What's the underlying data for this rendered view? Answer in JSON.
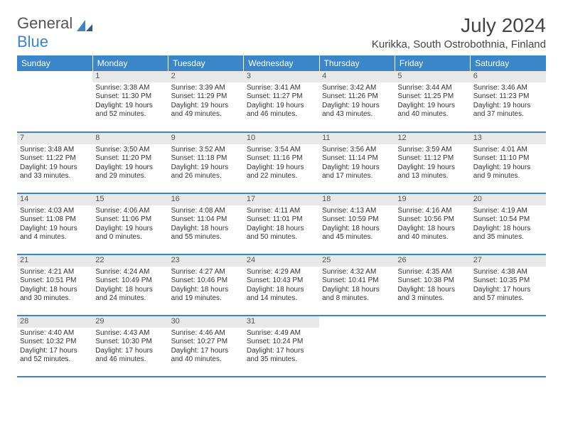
{
  "logo": {
    "part1": "General",
    "part2": "Blue"
  },
  "title": "July 2024",
  "location": "Kurikka, South Ostrobothnia, Finland",
  "weekdays": [
    "Sunday",
    "Monday",
    "Tuesday",
    "Wednesday",
    "Thursday",
    "Friday",
    "Saturday"
  ],
  "colors": {
    "header_bg": "#3a86c8",
    "header_text": "#ffffff",
    "daynum_bg": "#e8e8e8",
    "border": "#3a86c8"
  },
  "weeks": [
    [
      null,
      {
        "n": "1",
        "sr": "Sunrise: 3:38 AM",
        "ss": "Sunset: 11:30 PM",
        "dl": "Daylight: 19 hours and 52 minutes."
      },
      {
        "n": "2",
        "sr": "Sunrise: 3:39 AM",
        "ss": "Sunset: 11:29 PM",
        "dl": "Daylight: 19 hours and 49 minutes."
      },
      {
        "n": "3",
        "sr": "Sunrise: 3:41 AM",
        "ss": "Sunset: 11:27 PM",
        "dl": "Daylight: 19 hours and 46 minutes."
      },
      {
        "n": "4",
        "sr": "Sunrise: 3:42 AM",
        "ss": "Sunset: 11:26 PM",
        "dl": "Daylight: 19 hours and 43 minutes."
      },
      {
        "n": "5",
        "sr": "Sunrise: 3:44 AM",
        "ss": "Sunset: 11:25 PM",
        "dl": "Daylight: 19 hours and 40 minutes."
      },
      {
        "n": "6",
        "sr": "Sunrise: 3:46 AM",
        "ss": "Sunset: 11:23 PM",
        "dl": "Daylight: 19 hours and 37 minutes."
      }
    ],
    [
      {
        "n": "7",
        "sr": "Sunrise: 3:48 AM",
        "ss": "Sunset: 11:22 PM",
        "dl": "Daylight: 19 hours and 33 minutes."
      },
      {
        "n": "8",
        "sr": "Sunrise: 3:50 AM",
        "ss": "Sunset: 11:20 PM",
        "dl": "Daylight: 19 hours and 29 minutes."
      },
      {
        "n": "9",
        "sr": "Sunrise: 3:52 AM",
        "ss": "Sunset: 11:18 PM",
        "dl": "Daylight: 19 hours and 26 minutes."
      },
      {
        "n": "10",
        "sr": "Sunrise: 3:54 AM",
        "ss": "Sunset: 11:16 PM",
        "dl": "Daylight: 19 hours and 22 minutes."
      },
      {
        "n": "11",
        "sr": "Sunrise: 3:56 AM",
        "ss": "Sunset: 11:14 PM",
        "dl": "Daylight: 19 hours and 17 minutes."
      },
      {
        "n": "12",
        "sr": "Sunrise: 3:59 AM",
        "ss": "Sunset: 11:12 PM",
        "dl": "Daylight: 19 hours and 13 minutes."
      },
      {
        "n": "13",
        "sr": "Sunrise: 4:01 AM",
        "ss": "Sunset: 11:10 PM",
        "dl": "Daylight: 19 hours and 9 minutes."
      }
    ],
    [
      {
        "n": "14",
        "sr": "Sunrise: 4:03 AM",
        "ss": "Sunset: 11:08 PM",
        "dl": "Daylight: 19 hours and 4 minutes."
      },
      {
        "n": "15",
        "sr": "Sunrise: 4:06 AM",
        "ss": "Sunset: 11:06 PM",
        "dl": "Daylight: 19 hours and 0 minutes."
      },
      {
        "n": "16",
        "sr": "Sunrise: 4:08 AM",
        "ss": "Sunset: 11:04 PM",
        "dl": "Daylight: 18 hours and 55 minutes."
      },
      {
        "n": "17",
        "sr": "Sunrise: 4:11 AM",
        "ss": "Sunset: 11:01 PM",
        "dl": "Daylight: 18 hours and 50 minutes."
      },
      {
        "n": "18",
        "sr": "Sunrise: 4:13 AM",
        "ss": "Sunset: 10:59 PM",
        "dl": "Daylight: 18 hours and 45 minutes."
      },
      {
        "n": "19",
        "sr": "Sunrise: 4:16 AM",
        "ss": "Sunset: 10:56 PM",
        "dl": "Daylight: 18 hours and 40 minutes."
      },
      {
        "n": "20",
        "sr": "Sunrise: 4:19 AM",
        "ss": "Sunset: 10:54 PM",
        "dl": "Daylight: 18 hours and 35 minutes."
      }
    ],
    [
      {
        "n": "21",
        "sr": "Sunrise: 4:21 AM",
        "ss": "Sunset: 10:51 PM",
        "dl": "Daylight: 18 hours and 30 minutes."
      },
      {
        "n": "22",
        "sr": "Sunrise: 4:24 AM",
        "ss": "Sunset: 10:49 PM",
        "dl": "Daylight: 18 hours and 24 minutes."
      },
      {
        "n": "23",
        "sr": "Sunrise: 4:27 AM",
        "ss": "Sunset: 10:46 PM",
        "dl": "Daylight: 18 hours and 19 minutes."
      },
      {
        "n": "24",
        "sr": "Sunrise: 4:29 AM",
        "ss": "Sunset: 10:43 PM",
        "dl": "Daylight: 18 hours and 14 minutes."
      },
      {
        "n": "25",
        "sr": "Sunrise: 4:32 AM",
        "ss": "Sunset: 10:41 PM",
        "dl": "Daylight: 18 hours and 8 minutes."
      },
      {
        "n": "26",
        "sr": "Sunrise: 4:35 AM",
        "ss": "Sunset: 10:38 PM",
        "dl": "Daylight: 18 hours and 3 minutes."
      },
      {
        "n": "27",
        "sr": "Sunrise: 4:38 AM",
        "ss": "Sunset: 10:35 PM",
        "dl": "Daylight: 17 hours and 57 minutes."
      }
    ],
    [
      {
        "n": "28",
        "sr": "Sunrise: 4:40 AM",
        "ss": "Sunset: 10:32 PM",
        "dl": "Daylight: 17 hours and 52 minutes."
      },
      {
        "n": "29",
        "sr": "Sunrise: 4:43 AM",
        "ss": "Sunset: 10:30 PM",
        "dl": "Daylight: 17 hours and 46 minutes."
      },
      {
        "n": "30",
        "sr": "Sunrise: 4:46 AM",
        "ss": "Sunset: 10:27 PM",
        "dl": "Daylight: 17 hours and 40 minutes."
      },
      {
        "n": "31",
        "sr": "Sunrise: 4:49 AM",
        "ss": "Sunset: 10:24 PM",
        "dl": "Daylight: 17 hours and 35 minutes."
      },
      null,
      null,
      null
    ]
  ]
}
